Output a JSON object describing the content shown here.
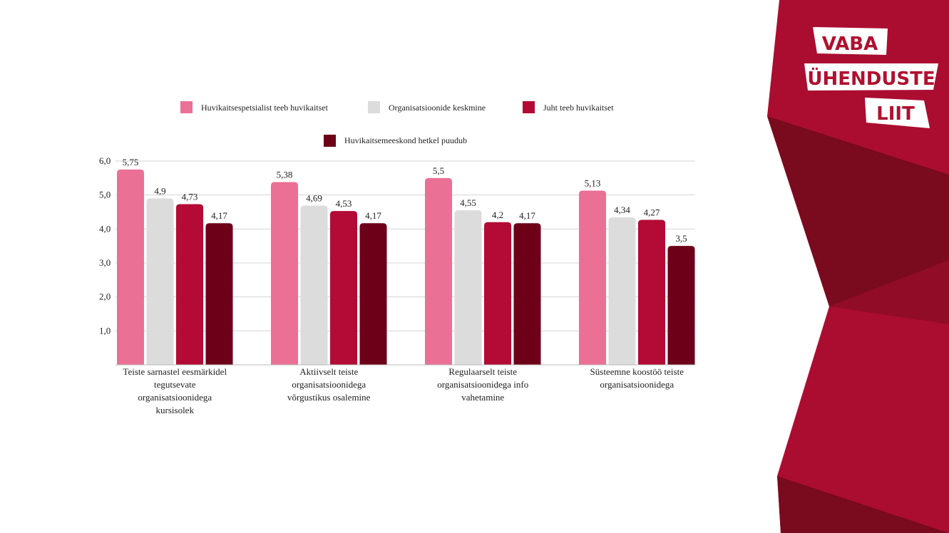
{
  "logo": {
    "lines": [
      "VABA",
      "ÜHENDUSTE",
      "LIIT"
    ]
  },
  "colors": {
    "brand": "#ab0d30",
    "brand_dark": "#7a0a1e",
    "brand_mid": "#910c26"
  },
  "chart_data": {
    "type": "bar",
    "title": "",
    "xlabel": "",
    "ylabel": "",
    "ylim": [
      0,
      6
    ],
    "yticks": [
      "1,0",
      "2,0",
      "3,0",
      "4,0",
      "5,0",
      "6,0"
    ],
    "grid": true,
    "legend_position": "top",
    "categories": [
      [
        "Teiste sarnastel eesmärkidel",
        "tegutsevate",
        "organisatsioonidega",
        "kursisolek"
      ],
      [
        "Aktiivselt teiste",
        "organisatsioonidega",
        "võrgustikus osalemine"
      ],
      [
        "Regulaarselt teiste",
        "organisatsioonidega info",
        "vahetamine"
      ],
      [
        "Süsteemne koostöö teiste",
        "organisatsioonidega"
      ]
    ],
    "series": [
      {
        "name": "Huvikaitsespetsialist teeb huvikaitset",
        "color": "#eb7095",
        "values": [
          5.75,
          5.38,
          5.5,
          5.13
        ],
        "labels": [
          "5,75",
          "5,38",
          "5,5",
          "5,13"
        ]
      },
      {
        "name": "Organisatsioonide keskmine",
        "color": "#dcdcdc",
        "values": [
          4.9,
          4.69,
          4.55,
          4.34
        ],
        "labels": [
          "4,9",
          "4,69",
          "4,55",
          "4,34"
        ]
      },
      {
        "name": "Juht teeb huvikaitset",
        "color": "#b30b35",
        "values": [
          4.73,
          4.53,
          4.2,
          4.27
        ],
        "labels": [
          "4,73",
          "4,53",
          "4,2",
          "4,27"
        ]
      },
      {
        "name": "Huvikaitsemeeskond hetkel puudub",
        "color": "#6d0018",
        "values": [
          4.17,
          4.17,
          4.17,
          3.5
        ],
        "labels": [
          "4,17",
          "4,17",
          "4,17",
          "3,5"
        ]
      }
    ]
  }
}
